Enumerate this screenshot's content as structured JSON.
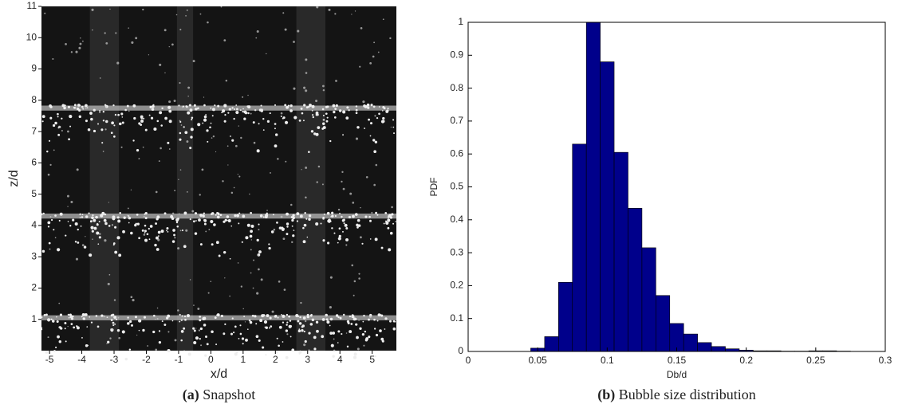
{
  "chart_data": [
    {
      "type": "image",
      "xlabel": "x/d",
      "ylabel": "z/d",
      "caption_label": "(a)",
      "caption": "Snapshot",
      "xlim": [
        -5.25,
        5.75
      ],
      "ylim": [
        0,
        11
      ],
      "xticks": [
        -5,
        -4,
        -3,
        -2,
        -1,
        0,
        1,
        2,
        3,
        4,
        5
      ],
      "yticks": [
        1,
        2,
        3,
        4,
        5,
        6,
        7,
        8,
        9,
        10,
        11
      ]
    },
    {
      "type": "histogram",
      "xlabel": "Db/d",
      "ylabel": "PDF",
      "caption_label": "(b)",
      "caption": "Bubble size distribution",
      "color": "#00008b",
      "bins": [
        0.045,
        0.055,
        0.065,
        0.075,
        0.085,
        0.095,
        0.105,
        0.115,
        0.125,
        0.135,
        0.145,
        0.155,
        0.165,
        0.175,
        0.185,
        0.195,
        0.205,
        0.215,
        0.225,
        0.235,
        0.245,
        0.255,
        0.265,
        0.275
      ],
      "values": [
        0.01,
        0.045,
        0.21,
        0.63,
        1.0,
        0.88,
        0.605,
        0.435,
        0.315,
        0.17,
        0.085,
        0.053,
        0.027,
        0.015,
        0.008,
        0.004,
        0.002,
        0.002,
        0.001,
        0.001,
        0.002,
        0.002,
        0.001
      ],
      "xlim": [
        0,
        0.3
      ],
      "ylim": [
        0,
        1
      ],
      "xticks": [
        0,
        0.05,
        0.1,
        0.15,
        0.2,
        0.25,
        0.3
      ],
      "yticks": [
        0,
        0.1,
        0.2,
        0.3,
        0.4,
        0.5,
        0.6,
        0.7,
        0.8,
        0.9,
        1
      ]
    }
  ]
}
